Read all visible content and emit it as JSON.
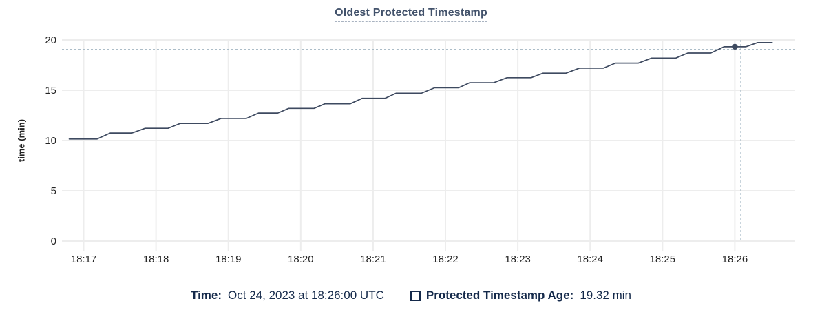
{
  "title": "Oldest Protected Timestamp",
  "y_axis_label": "time (min)",
  "legend": {
    "time_label": "Time:",
    "time_value": "Oct 24, 2023 at 18:26:00 UTC",
    "series_label": "Protected Timestamp Age:",
    "series_value": "19.32 min",
    "swatch_icon": "checkbox-square"
  },
  "colors": {
    "series_line": "#3e4a60",
    "hover_dot": "#3e4a60",
    "crosshair": "#a0b4c1",
    "gridline": "#ededed",
    "tick_label": "#242424",
    "title_text": "#42526b",
    "legend_text": "#14294a"
  },
  "chart_data": {
    "type": "line",
    "title": "Oldest Protected Timestamp",
    "xlabel": "",
    "ylabel": "time (min)",
    "ylim": [
      0,
      20
    ],
    "yticks": [
      0,
      5,
      10,
      15,
      20
    ],
    "grid": true,
    "legend_position": "bottom",
    "x_domain_seconds_after_18_16_00": [
      42,
      650
    ],
    "xticks": [
      {
        "s": 60,
        "label": "18:17"
      },
      {
        "s": 120,
        "label": "18:18"
      },
      {
        "s": 180,
        "label": "18:19"
      },
      {
        "s": 240,
        "label": "18:20"
      },
      {
        "s": 300,
        "label": "18:21"
      },
      {
        "s": 360,
        "label": "18:22"
      },
      {
        "s": 420,
        "label": "18:23"
      },
      {
        "s": 480,
        "label": "18:24"
      },
      {
        "s": 540,
        "label": "18:25"
      },
      {
        "s": 600,
        "label": "18:26"
      }
    ],
    "series": [
      {
        "name": "Protected Timestamp Age",
        "unit": "min",
        "points_seconds_value": [
          [
            48,
            10.15
          ],
          [
            71,
            10.15
          ],
          [
            82,
            10.75
          ],
          [
            100,
            10.75
          ],
          [
            111,
            11.22
          ],
          [
            130,
            11.22
          ],
          [
            140,
            11.7
          ],
          [
            163,
            11.7
          ],
          [
            174,
            12.2
          ],
          [
            195,
            12.2
          ],
          [
            205,
            12.73
          ],
          [
            221,
            12.73
          ],
          [
            230,
            13.2
          ],
          [
            251,
            13.2
          ],
          [
            260,
            13.65
          ],
          [
            281,
            13.65
          ],
          [
            291,
            14.2
          ],
          [
            310,
            14.2
          ],
          [
            319,
            14.7
          ],
          [
            340,
            14.7
          ],
          [
            351,
            15.25
          ],
          [
            371,
            15.25
          ],
          [
            380,
            15.75
          ],
          [
            400,
            15.75
          ],
          [
            411,
            16.25
          ],
          [
            431,
            16.25
          ],
          [
            441,
            16.7
          ],
          [
            460,
            16.7
          ],
          [
            471,
            17.2
          ],
          [
            491,
            17.2
          ],
          [
            501,
            17.7
          ],
          [
            520,
            17.7
          ],
          [
            531,
            18.2
          ],
          [
            551,
            18.2
          ],
          [
            561,
            18.7
          ],
          [
            580,
            18.7
          ],
          [
            591,
            19.32
          ],
          [
            609,
            19.32
          ],
          [
            619,
            19.74
          ],
          [
            631,
            19.74
          ]
        ]
      }
    ],
    "hover": {
      "time_label": "18:26:00",
      "point_seconds": 600,
      "value_min": 19.32,
      "crosshair_x_seconds": 605,
      "crosshair_y_min": 19.05
    }
  }
}
